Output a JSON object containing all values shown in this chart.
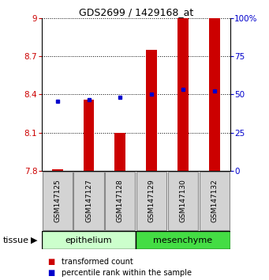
{
  "title": "GDS2699 / 1429168_at",
  "samples": [
    "GSM147125",
    "GSM147127",
    "GSM147128",
    "GSM147129",
    "GSM147130",
    "GSM147132"
  ],
  "transformed_counts": [
    7.81,
    8.36,
    8.1,
    8.75,
    9.0,
    9.0
  ],
  "percentile_ranks_left_axis": [
    8.35,
    8.36,
    8.38,
    8.4,
    8.44,
    8.43
  ],
  "ylim": [
    7.8,
    9.0
  ],
  "yticks": [
    7.8,
    8.1,
    8.4,
    8.7,
    9.0
  ],
  "ytick_labels": [
    "7.8",
    "8.1",
    "8.4",
    "8.7",
    "9"
  ],
  "right_yticks": [
    0,
    25,
    50,
    75,
    100
  ],
  "right_ytick_labels": [
    "0",
    "25",
    "50",
    "75",
    "100%"
  ],
  "bar_color": "#cc0000",
  "dot_color": "#0000cc",
  "bar_width": 0.35,
  "epithelium_color": "#ccffcc",
  "mesenchyme_color": "#44dd44",
  "label_bg_color": "#d3d3d3",
  "legend_items": [
    {
      "label": "transformed count",
      "color": "#cc0000"
    },
    {
      "label": "percentile rank within the sample",
      "color": "#0000cc"
    }
  ]
}
